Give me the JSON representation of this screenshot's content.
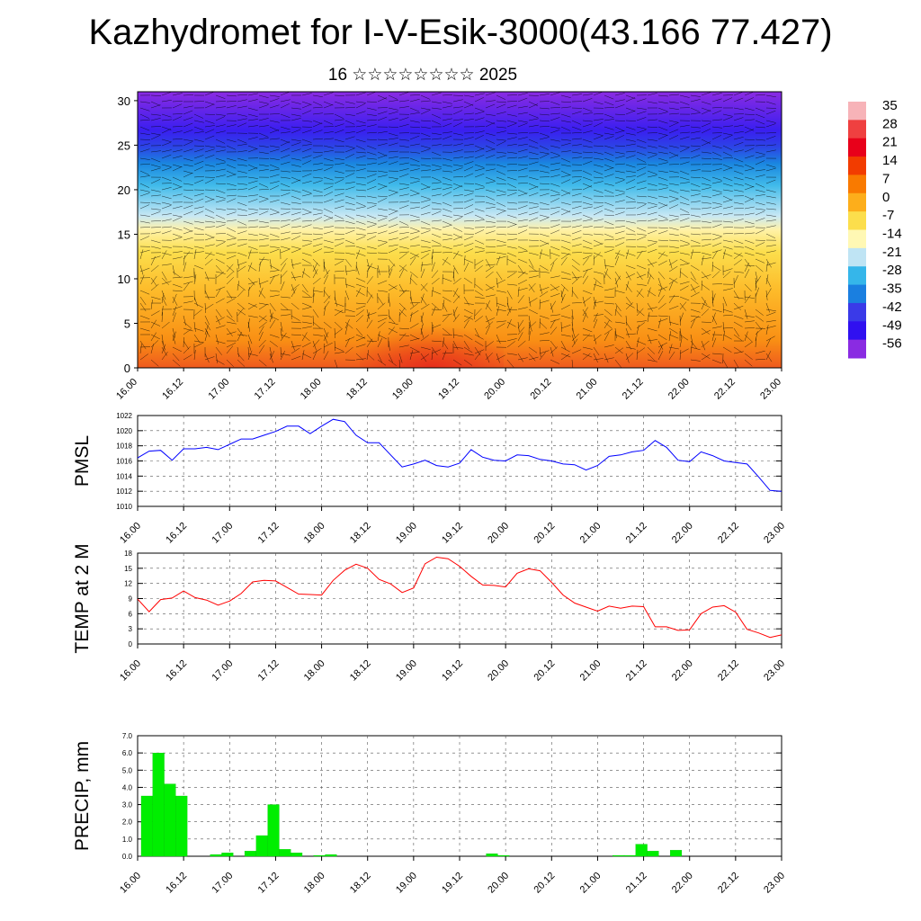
{
  "title": "Kazhydromet for I-V-Esik-3000(43.166 77.427)",
  "subtitle": "16 ☆☆☆☆☆☆☆☆ 2025",
  "time_labels": [
    "16.00",
    "16.12",
    "17.00",
    "17.12",
    "18.00",
    "18.12",
    "19.00",
    "19.12",
    "20.00",
    "20.12",
    "21.00",
    "21.12",
    "22.00",
    "22.12",
    "23.00"
  ],
  "chart_data": [
    {
      "type": "heatmap",
      "name": "cross-section",
      "xlabel": "",
      "ylabel": "",
      "ylim": [
        0,
        31
      ],
      "yticks": [
        0,
        5,
        10,
        15,
        20,
        25,
        30
      ],
      "colorbar": {
        "labels": [
          "35",
          "28",
          "21",
          "14",
          "7",
          "0",
          "-7",
          "-14",
          "-21",
          "-28",
          "-35",
          "-42",
          "-49",
          "-56"
        ],
        "colors": [
          "#f7b3b8",
          "#ef4040",
          "#e8001a",
          "#f23c00",
          "#f97a00",
          "#fdae1b",
          "#fcde4c",
          "#fff8b4",
          "#bfe4f4",
          "#35b6ea",
          "#1a7fe0",
          "#3a3ae8",
          "#3010f0",
          "#8a2be2"
        ]
      }
    },
    {
      "type": "line",
      "name": "PMSL",
      "ylabel": "PMSL",
      "ylim": [
        1010,
        1022
      ],
      "yticks": [
        1010,
        1012,
        1014,
        1016,
        1018,
        1020,
        1022
      ],
      "color": "#0000ff",
      "x": [
        0,
        3,
        6,
        9,
        12,
        15,
        18,
        21,
        24,
        27,
        30,
        33,
        36,
        39,
        42,
        45,
        48,
        51,
        54,
        57,
        60,
        63,
        66,
        69,
        72,
        75,
        78,
        81,
        84,
        87,
        90,
        93,
        96,
        99,
        102,
        105,
        108,
        111,
        114,
        117,
        120,
        123,
        126,
        129,
        132,
        135,
        138,
        141,
        144,
        147,
        150,
        153,
        156,
        159,
        162,
        165,
        168
      ],
      "values": [
        1016.4,
        1017.3,
        1017.4,
        1016.1,
        1017.6,
        1017.6,
        1017.8,
        1017.5,
        1018.2,
        1018.9,
        1018.9,
        1019.4,
        1019.9,
        1020.6,
        1020.6,
        1019.6,
        1020.6,
        1021.5,
        1021.2,
        1019.4,
        1018.4,
        1018.4,
        1016.8,
        1015.2,
        1015.6,
        1016.1,
        1015.4,
        1015.2,
        1015.7,
        1017.5,
        1016.5,
        1016.1,
        1016.0,
        1016.8,
        1016.7,
        1016.2,
        1016.0,
        1015.6,
        1015.5,
        1014.8,
        1015.4,
        1016.6,
        1016.8,
        1017.2,
        1017.4,
        1018.7,
        1017.8,
        1016.1,
        1015.9,
        1017.2,
        1016.7,
        1016.0,
        1015.8,
        1015.6,
        1013.9,
        1012.1,
        1012.0
      ]
    },
    {
      "type": "line",
      "name": "TEMP at 2 M",
      "ylabel": "TEMP at 2 M",
      "ylim": [
        0,
        18
      ],
      "yticks": [
        0,
        3,
        6,
        9,
        12,
        15,
        18
      ],
      "color": "#ff0000",
      "x": [
        0,
        3,
        6,
        9,
        12,
        15,
        18,
        21,
        24,
        27,
        30,
        33,
        36,
        39,
        42,
        45,
        48,
        51,
        54,
        57,
        60,
        63,
        66,
        69,
        72,
        75,
        78,
        81,
        84,
        87,
        90,
        93,
        96,
        99,
        102,
        105,
        108,
        111,
        114,
        117,
        120,
        123,
        126,
        129,
        132,
        135,
        138,
        141,
        144,
        147,
        150,
        153,
        156,
        159,
        162,
        165,
        168
      ],
      "values": [
        8.9,
        6.4,
        8.8,
        9.1,
        10.5,
        9.2,
        8.7,
        7.7,
        8.5,
        10.0,
        12.3,
        12.6,
        12.5,
        11.2,
        9.9,
        9.8,
        9.7,
        12.6,
        14.6,
        15.8,
        15.0,
        12.8,
        11.9,
        10.2,
        11.1,
        15.9,
        17.2,
        16.9,
        15.4,
        13.4,
        11.7,
        11.6,
        11.3,
        14.0,
        14.9,
        14.5,
        12.2,
        9.7,
        8.1,
        7.3,
        6.5,
        7.5,
        7.1,
        7.5,
        7.4,
        3.4,
        3.4,
        2.7,
        2.8,
        6.0,
        7.3,
        7.6,
        6.3,
        2.9,
        2.2,
        1.3,
        1.8
      ]
    },
    {
      "type": "bar",
      "name": "PRECIP, mm",
      "ylabel": "PRECIP, mm",
      "ylim": [
        0,
        7
      ],
      "yticks": [
        "0.0",
        "1.0",
        "2.0",
        "3.0",
        "4.0",
        "5.0",
        "6.0",
        "7.0"
      ],
      "color": "#00ee00",
      "x": [
        0,
        3,
        6,
        9,
        12,
        15,
        18,
        21,
        24,
        27,
        30,
        33,
        36,
        39,
        42,
        45,
        48,
        51,
        54,
        57,
        60,
        63,
        66,
        69,
        72,
        75,
        78,
        81,
        84,
        87,
        90,
        93,
        96,
        99,
        102,
        105,
        108,
        111,
        114,
        117,
        120,
        123,
        126,
        129,
        132,
        135,
        138,
        141,
        144,
        147,
        150,
        153,
        156,
        159,
        162,
        165
      ],
      "values": [
        3.5,
        6.0,
        4.2,
        3.5,
        0,
        0,
        0.1,
        0.2,
        0,
        0.3,
        1.2,
        3.0,
        0.4,
        0.2,
        0,
        0.05,
        0.1,
        0,
        0,
        0,
        0,
        0,
        0,
        0,
        0,
        0,
        0,
        0,
        0,
        0,
        0.15,
        0.05,
        0,
        0,
        0,
        0,
        0,
        0,
        0,
        0,
        0,
        0.05,
        0.05,
        0.7,
        0.3,
        0,
        0.35,
        0,
        0,
        0,
        0,
        0,
        0,
        0,
        0,
        0
      ]
    }
  ]
}
